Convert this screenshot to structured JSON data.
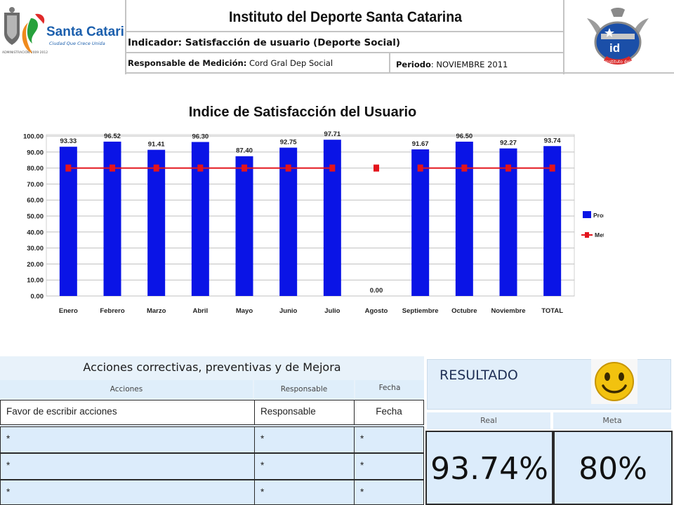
{
  "header": {
    "title": "Instituto del Deporte Santa Catarina",
    "indicador_label": "Indicador:",
    "indicador_value": "Satisfacción de usuario (Deporte Social)",
    "responsable_label": "Responsable de Medición:",
    "responsable_value": "Cord Gral Dep Social",
    "periodo_label": "Periodo",
    "periodo_value": ": NOVIEMBRE 2011",
    "logo_left_text": "Santa Catarina",
    "logo_left_sub": "Ciudad Que Crece Unida",
    "logo_left_admin": "ADMINISTRACIÓN 2009 2012",
    "logo_right_text": "id",
    "logo_right_sub": "Instituto del Deporte",
    "brand_blue": "#1b5fad",
    "brand_green": "#2a9a3e"
  },
  "chart_data": {
    "type": "bar",
    "title": "Indice de Satisfacción del Usuario",
    "categories": [
      "Enero",
      "Febrero",
      "Marzo",
      "Abril",
      "Mayo",
      "Junio",
      "Julio",
      "Agosto",
      "Septiembre",
      "Octubre",
      "Noviembre",
      "TOTAL"
    ],
    "series": [
      {
        "name": "Promedio de Puntos",
        "type": "bar",
        "color": "#0a14e6",
        "values": [
          93.33,
          96.52,
          91.41,
          96.3,
          87.4,
          92.75,
          97.71,
          0.0,
          91.67,
          96.5,
          92.27,
          93.74
        ],
        "labels": [
          "93.33",
          "96.52",
          "91.41",
          "96.30",
          "87.40",
          "92.75",
          "97.71",
          "0.00",
          "91.67",
          "96.50",
          "92.27",
          "93.74"
        ]
      },
      {
        "name": "Meta",
        "type": "line",
        "color": "#e3141c",
        "values": [
          80,
          80,
          80,
          80,
          80,
          80,
          80,
          80,
          80,
          80,
          80,
          80
        ]
      }
    ],
    "ylim": [
      0,
      100
    ],
    "yticks": [
      "0.00",
      "10.00",
      "20.00",
      "30.00",
      "40.00",
      "50.00",
      "60.00",
      "70.00",
      "80.00",
      "90.00",
      "100.00"
    ],
    "grid": true,
    "legend_position": "right"
  },
  "acciones": {
    "title": "Acciones correctivas, preventivas y de Mejora",
    "col_acciones": "Acciones",
    "col_responsable": "Responsable",
    "col_fecha": "Fecha",
    "first_row": {
      "accion": "Favor de escribir acciones",
      "responsable": "Responsable",
      "fecha": "Fecha"
    },
    "rows": [
      {
        "accion": "*",
        "responsable": "*",
        "fecha": "*"
      },
      {
        "accion": "*",
        "responsable": "*",
        "fecha": "*"
      },
      {
        "accion": "*",
        "responsable": "*",
        "fecha": "*"
      }
    ]
  },
  "resultado": {
    "title": "RESULTADO",
    "real_label": "Real",
    "meta_label": "Meta",
    "real_value": "93.74%",
    "meta_value": "80%",
    "smiley_icon": "smiley-face-icon",
    "smiley_color": "#f2c20f"
  }
}
